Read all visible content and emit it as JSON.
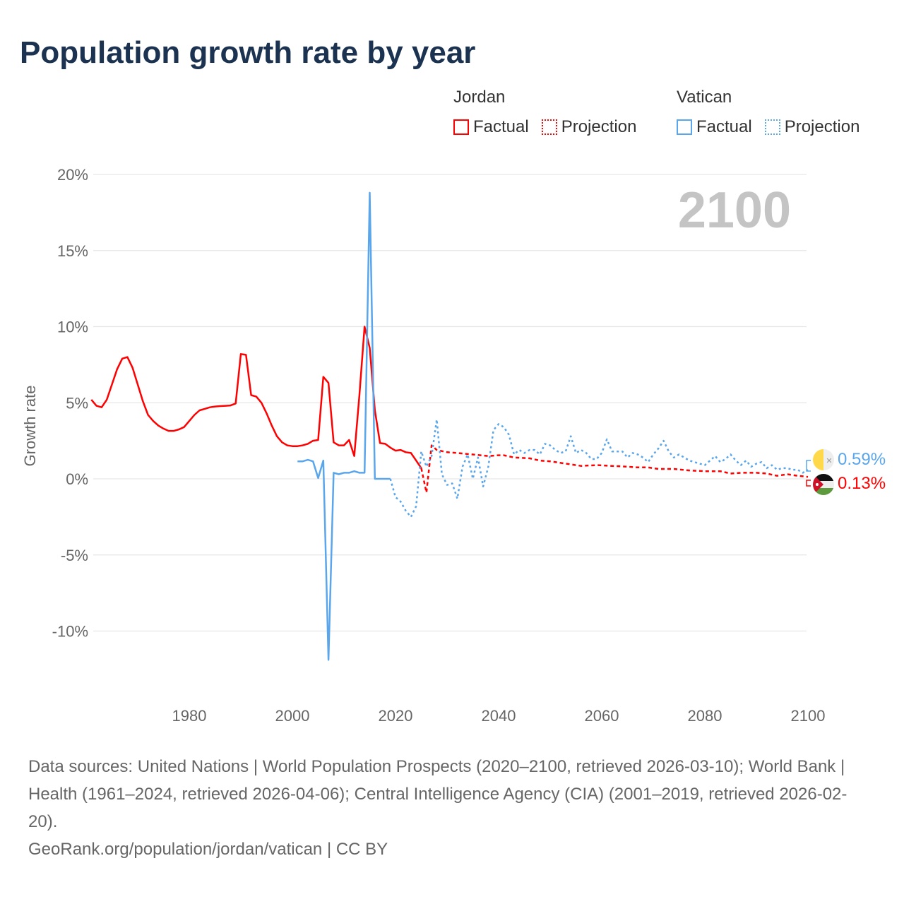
{
  "title": "Population growth rate by year",
  "legend": {
    "groups": [
      {
        "name": "Jordan",
        "factual": "Factual",
        "projection": "Projection",
        "color": "#ff0000"
      },
      {
        "name": "Vatican",
        "factual": "Factual",
        "projection": "Projection",
        "color": "#5aa6ec"
      }
    ]
  },
  "end_labels": {
    "vatican": "0.59%",
    "jordan": "0.13%"
  },
  "footer": {
    "sources": "Data sources: United Nations | World Population Prospects (2020–2100, retrieved 2026-03-10); World Bank | Health (1961–2024, retrieved 2026-04-06); Central Intelligence Agency (CIA) (2001–2019, retrieved 2026-02-20).",
    "credit": "GeoRank.org/population/jordan/vatican | CC BY"
  },
  "chart_data": {
    "type": "line",
    "title": "Population growth rate by year",
    "watermark_year": "2100",
    "xlabel": "",
    "ylabel": "Growth rate",
    "xlim": [
      1961,
      2100
    ],
    "ylim": [
      -13,
      21
    ],
    "x_ticks": [
      1980,
      2000,
      2020,
      2040,
      2060,
      2080,
      2100
    ],
    "x_tick_labels": [
      "1980",
      "2000",
      "2020",
      "2040",
      "2060",
      "2080",
      "2100"
    ],
    "y_ticks": [
      20,
      15,
      10,
      5,
      0,
      -5,
      -10
    ],
    "y_tick_labels": [
      "20%",
      "15%",
      "10%",
      "5%",
      "0%",
      "-5%",
      "-10%"
    ],
    "grid": true,
    "series": [
      {
        "name": "Jordan Factual",
        "color": "#ff0000",
        "style": "solid",
        "points": [
          [
            1961,
            5.2
          ],
          [
            1962,
            4.8
          ],
          [
            1963,
            4.7
          ],
          [
            1964,
            5.2
          ],
          [
            1965,
            6.2
          ],
          [
            1966,
            7.2
          ],
          [
            1967,
            7.9
          ],
          [
            1968,
            8.0
          ],
          [
            1969,
            7.3
          ],
          [
            1970,
            6.2
          ],
          [
            1971,
            5.1
          ],
          [
            1972,
            4.2
          ],
          [
            1973,
            3.8
          ],
          [
            1974,
            3.5
          ],
          [
            1975,
            3.3
          ],
          [
            1976,
            3.15
          ],
          [
            1977,
            3.15
          ],
          [
            1978,
            3.25
          ],
          [
            1979,
            3.4
          ],
          [
            1980,
            3.8
          ],
          [
            1981,
            4.2
          ],
          [
            1982,
            4.5
          ],
          [
            1983,
            4.6
          ],
          [
            1984,
            4.7
          ],
          [
            1985,
            4.75
          ],
          [
            1986,
            4.78
          ],
          [
            1987,
            4.8
          ],
          [
            1988,
            4.82
          ],
          [
            1989,
            4.95
          ],
          [
            1990,
            8.2
          ],
          [
            1991,
            8.15
          ],
          [
            1992,
            5.5
          ],
          [
            1993,
            5.4
          ],
          [
            1994,
            5.0
          ],
          [
            1995,
            4.3
          ],
          [
            1996,
            3.5
          ],
          [
            1997,
            2.8
          ],
          [
            1998,
            2.4
          ],
          [
            1999,
            2.2
          ],
          [
            2000,
            2.15
          ],
          [
            2001,
            2.15
          ],
          [
            2002,
            2.2
          ],
          [
            2003,
            2.3
          ],
          [
            2004,
            2.5
          ],
          [
            2005,
            2.55
          ],
          [
            2006,
            6.7
          ],
          [
            2007,
            6.3
          ],
          [
            2008,
            2.4
          ],
          [
            2009,
            2.2
          ],
          [
            2010,
            2.2
          ],
          [
            2011,
            2.55
          ],
          [
            2012,
            1.5
          ],
          [
            2013,
            5.5
          ],
          [
            2014,
            10.0
          ],
          [
            2015,
            8.6
          ],
          [
            2016,
            4.5
          ],
          [
            2017,
            2.35
          ],
          [
            2018,
            2.3
          ],
          [
            2019,
            2.05
          ],
          [
            2020,
            1.85
          ],
          [
            2021,
            1.9
          ],
          [
            2022,
            1.75
          ],
          [
            2023,
            1.7
          ],
          [
            2024,
            1.2
          ],
          [
            2025,
            0.7
          ]
        ]
      },
      {
        "name": "Jordan Projection",
        "color": "#ff0000",
        "style": "dashed",
        "points": [
          [
            2025,
            0.7
          ],
          [
            2026,
            -0.9
          ],
          [
            2027,
            2.2
          ],
          [
            2028,
            1.9
          ],
          [
            2030,
            1.75
          ],
          [
            2032,
            1.7
          ],
          [
            2035,
            1.6
          ],
          [
            2038,
            1.5
          ],
          [
            2040,
            1.55
          ],
          [
            2041,
            1.55
          ],
          [
            2043,
            1.4
          ],
          [
            2046,
            1.35
          ],
          [
            2048,
            1.2
          ],
          [
            2050,
            1.15
          ],
          [
            2052,
            1.05
          ],
          [
            2054,
            0.95
          ],
          [
            2056,
            0.85
          ],
          [
            2059,
            0.9
          ],
          [
            2062,
            0.85
          ],
          [
            2065,
            0.8
          ],
          [
            2067,
            0.75
          ],
          [
            2069,
            0.75
          ],
          [
            2071,
            0.65
          ],
          [
            2074,
            0.65
          ],
          [
            2077,
            0.55
          ],
          [
            2080,
            0.5
          ],
          [
            2083,
            0.5
          ],
          [
            2085,
            0.35
          ],
          [
            2087,
            0.4
          ],
          [
            2090,
            0.4
          ],
          [
            2092,
            0.35
          ],
          [
            2094,
            0.2
          ],
          [
            2096,
            0.3
          ],
          [
            2098,
            0.2
          ],
          [
            2100,
            0.13
          ]
        ]
      },
      {
        "name": "Vatican Factual",
        "color": "#5aa6ec",
        "style": "solid",
        "points": [
          [
            2001,
            1.15
          ],
          [
            2002,
            1.15
          ],
          [
            2003,
            1.25
          ],
          [
            2004,
            1.15
          ],
          [
            2005,
            0.05
          ],
          [
            2006,
            1.2
          ],
          [
            2007,
            -11.9
          ],
          [
            2008,
            0.4
          ],
          [
            2009,
            0.3
          ],
          [
            2010,
            0.4
          ],
          [
            2011,
            0.4
          ],
          [
            2012,
            0.5
          ],
          [
            2013,
            0.4
          ],
          [
            2014,
            0.4
          ],
          [
            2015,
            18.8
          ],
          [
            2016,
            0
          ],
          [
            2017,
            0
          ],
          [
            2018,
            0
          ],
          [
            2019,
            0
          ]
        ]
      },
      {
        "name": "Vatican Projection",
        "color": "#5aa6ec",
        "style": "dotted",
        "points": [
          [
            2019,
            0
          ],
          [
            2020,
            -1.2
          ],
          [
            2021,
            -1.5
          ],
          [
            2022,
            -2.1
          ],
          [
            2023,
            -2.5
          ],
          [
            2024,
            -1.8
          ],
          [
            2025,
            1.8
          ],
          [
            2026,
            0.8
          ],
          [
            2027,
            1.5
          ],
          [
            2028,
            3.9
          ],
          [
            2029,
            0.3
          ],
          [
            2030,
            -0.4
          ],
          [
            2031,
            -0.3
          ],
          [
            2032,
            -1.3
          ],
          [
            2033,
            0.8
          ],
          [
            2034,
            1.6
          ],
          [
            2035,
            0
          ],
          [
            2036,
            1.4
          ],
          [
            2037,
            -0.5
          ],
          [
            2038,
            0.8
          ],
          [
            2039,
            3.2
          ],
          [
            2040,
            3.6
          ],
          [
            2041,
            3.4
          ],
          [
            2042,
            2.9
          ],
          [
            2043,
            1.6
          ],
          [
            2044,
            1.9
          ],
          [
            2045,
            1.7
          ],
          [
            2046,
            1.9
          ],
          [
            2047,
            1.9
          ],
          [
            2048,
            1.6
          ],
          [
            2049,
            2.3
          ],
          [
            2050,
            2.2
          ],
          [
            2051,
            1.9
          ],
          [
            2052,
            1.7
          ],
          [
            2053,
            1.8
          ],
          [
            2054,
            2.8
          ],
          [
            2055,
            1.7
          ],
          [
            2056,
            1.9
          ],
          [
            2057,
            1.7
          ],
          [
            2058,
            1.3
          ],
          [
            2059,
            1.3
          ],
          [
            2060,
            1.7
          ],
          [
            2061,
            2.6
          ],
          [
            2062,
            1.8
          ],
          [
            2063,
            1.8
          ],
          [
            2064,
            1.8
          ],
          [
            2065,
            1.4
          ],
          [
            2066,
            1.7
          ],
          [
            2067,
            1.6
          ],
          [
            2068,
            1.4
          ],
          [
            2069,
            1.1
          ],
          [
            2070,
            1.6
          ],
          [
            2071,
            2.0
          ],
          [
            2072,
            2.5
          ],
          [
            2073,
            1.8
          ],
          [
            2074,
            1.4
          ],
          [
            2075,
            1.6
          ],
          [
            2076,
            1.4
          ],
          [
            2077,
            1.2
          ],
          [
            2078,
            1.1
          ],
          [
            2079,
            1.0
          ],
          [
            2080,
            0.9
          ],
          [
            2081,
            1.2
          ],
          [
            2082,
            1.5
          ],
          [
            2083,
            1.1
          ],
          [
            2084,
            1.3
          ],
          [
            2085,
            1.6
          ],
          [
            2086,
            1.2
          ],
          [
            2087,
            0.9
          ],
          [
            2088,
            1.2
          ],
          [
            2089,
            0.8
          ],
          [
            2090,
            1.0
          ],
          [
            2091,
            1.1
          ],
          [
            2092,
            0.7
          ],
          [
            2093,
            0.9
          ],
          [
            2094,
            0.6
          ],
          [
            2095,
            0.7
          ],
          [
            2096,
            0.7
          ],
          [
            2097,
            0.6
          ],
          [
            2098,
            0.6
          ],
          [
            2099,
            0.4
          ],
          [
            2100,
            0.59
          ]
        ]
      }
    ]
  }
}
